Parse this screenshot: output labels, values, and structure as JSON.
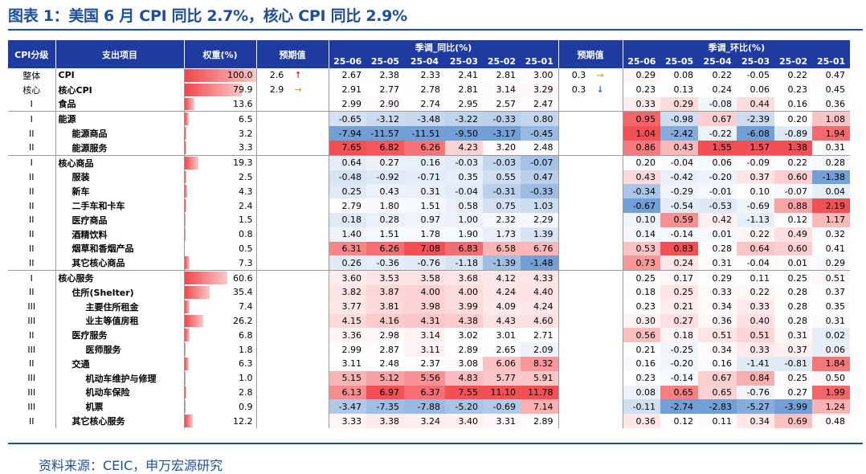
{
  "title": "图表 1：美国 6 月 CPI 同比 2.7%，核心 CPI 同比 2.9%",
  "source": "资料来源：CEIC，申万宏源研究",
  "header": {
    "cpi_level": "CPI分级",
    "item": "支出项目",
    "weight": "权重(%)",
    "forecast": "预期值",
    "yoy_group": "季调_同比(%)",
    "mom_group": "季调_环比(%)",
    "months": [
      "25-06",
      "25-05",
      "25-04",
      "25-03",
      "25-02",
      "25-01"
    ]
  },
  "colors": {
    "header_bg": "#1f3aa0",
    "title": "#1f4e9b",
    "positive_max": "#f0474b",
    "negative_max": "#5a8ed0",
    "arrow_up": "#e53935",
    "arrow_right": "#f0a020",
    "arrow_down": "#2e6fd6"
  },
  "rows": [
    {
      "level": "整体",
      "item": "CPI",
      "indent": 0,
      "weight": "100.0",
      "w": 100.0,
      "fc1": "2.6",
      "arr1": "↑",
      "fc2": "0.3",
      "arr2": "→",
      "yoy": [
        "2.67",
        "2.38",
        "2.33",
        "2.41",
        "2.81",
        "3.00"
      ],
      "mom": [
        "0.29",
        "0.08",
        "0.22",
        "-0.05",
        "0.22",
        "0.47"
      ]
    },
    {
      "level": "核心",
      "item": "核心CPI",
      "indent": 0,
      "weight": "79.9",
      "w": 79.9,
      "fc1": "2.9",
      "arr1": "→",
      "fc2": "0.3",
      "arr2": "↓",
      "yoy": [
        "2.91",
        "2.77",
        "2.78",
        "2.81",
        "3.14",
        "3.29"
      ],
      "mom": [
        "0.23",
        "0.13",
        "0.24",
        "0.06",
        "0.23",
        "0.45"
      ]
    },
    {
      "level": "I",
      "item": "食品",
      "indent": 0,
      "weight": "13.6",
      "w": 13.6,
      "yoy": [
        "2.99",
        "2.90",
        "2.74",
        "2.95",
        "2.57",
        "2.47"
      ],
      "mom": [
        "0.33",
        "0.29",
        "-0.08",
        "0.44",
        "0.16",
        "0.36"
      ]
    },
    {
      "level": "I",
      "item": "能源",
      "indent": 0,
      "weight": "6.5",
      "w": 6.5,
      "sep": true,
      "yoy": [
        "-0.65",
        "-3.12",
        "-3.48",
        "-3.22",
        "-0.33",
        "0.80"
      ],
      "mom": [
        "0.95",
        "-0.98",
        "0.67",
        "-2.39",
        "0.20",
        "1.08"
      ]
    },
    {
      "level": "II",
      "item": "能源商品",
      "indent": 1,
      "weight": "3.2",
      "w": 3.2,
      "yoy": [
        "-7.94",
        "-11.57",
        "-11.51",
        "-9.50",
        "-3.17",
        "-0.45"
      ],
      "mom": [
        "1.04",
        "-2.42",
        "-0.22",
        "-6.08",
        "-0.89",
        "1.94"
      ]
    },
    {
      "level": "II",
      "item": "能源服务",
      "indent": 1,
      "weight": "3.3",
      "w": 3.3,
      "yoy": [
        "7.65",
        "6.82",
        "6.26",
        "4.23",
        "3.20",
        "2.48"
      ],
      "mom": [
        "0.86",
        "0.43",
        "1.55",
        "1.57",
        "1.38",
        "0.31"
      ]
    },
    {
      "level": "I",
      "item": "核心商品",
      "indent": 0,
      "weight": "19.3",
      "w": 19.3,
      "sep": true,
      "yoy": [
        "0.64",
        "0.27",
        "0.16",
        "-0.03",
        "-0.03",
        "-0.07"
      ],
      "mom": [
        "0.20",
        "-0.04",
        "0.06",
        "-0.09",
        "0.22",
        "0.28"
      ]
    },
    {
      "level": "II",
      "item": "服装",
      "indent": 1,
      "weight": "2.5",
      "w": 2.5,
      "yoy": [
        "-0.48",
        "-0.92",
        "-0.71",
        "0.35",
        "0.55",
        "0.47"
      ],
      "mom": [
        "0.43",
        "-0.42",
        "-0.20",
        "0.37",
        "0.60",
        "-1.38"
      ]
    },
    {
      "level": "II",
      "item": "新车",
      "indent": 1,
      "weight": "4.3",
      "w": 4.3,
      "yoy": [
        "0.25",
        "0.43",
        "0.31",
        "-0.04",
        "-0.31",
        "-0.33"
      ],
      "mom": [
        "-0.34",
        "-0.29",
        "-0.01",
        "0.10",
        "-0.07",
        "0.04"
      ]
    },
    {
      "level": "II",
      "item": "二手车和卡车",
      "indent": 1,
      "weight": "2.4",
      "w": 2.4,
      "yoy": [
        "2.79",
        "1.80",
        "1.51",
        "0.58",
        "0.75",
        "1.03"
      ],
      "mom": [
        "-0.67",
        "-0.54",
        "-0.53",
        "-0.69",
        "0.88",
        "2.19"
      ]
    },
    {
      "level": "II",
      "item": "医疗商品",
      "indent": 1,
      "weight": "1.5",
      "w": 1.5,
      "yoy": [
        "0.18",
        "0.28",
        "0.97",
        "1.00",
        "2.32",
        "2.29"
      ],
      "mom": [
        "0.10",
        "0.59",
        "0.42",
        "-1.13",
        "0.12",
        "1.17"
      ]
    },
    {
      "level": "II",
      "item": "酒精饮料",
      "indent": 1,
      "weight": "0.8",
      "w": 0.8,
      "yoy": [
        "1.40",
        "1.51",
        "1.78",
        "1.90",
        "1.73",
        "1.39"
      ],
      "mom": [
        "0.14",
        "-0.14",
        "0.01",
        "0.22",
        "0.49",
        "0.32"
      ]
    },
    {
      "level": "II",
      "item": "烟草和香烟产品",
      "indent": 1,
      "weight": "0.5",
      "w": 0.5,
      "yoy": [
        "6.31",
        "6.26",
        "7.08",
        "6.83",
        "6.58",
        "6.76"
      ],
      "mom": [
        "0.53",
        "0.83",
        "0.28",
        "0.64",
        "0.60",
        "0.41"
      ]
    },
    {
      "level": "II",
      "item": "其它核心商品",
      "indent": 1,
      "weight": "7.3",
      "w": 7.3,
      "yoy": [
        "0.26",
        "-0.36",
        "-0.76",
        "-1.18",
        "-1.39",
        "-1.48"
      ],
      "mom": [
        "0.73",
        "0.24",
        "0.31",
        "-0.04",
        "0.01",
        "0.29"
      ]
    },
    {
      "level": "I",
      "item": "核心服务",
      "indent": 0,
      "weight": "60.6",
      "w": 60.6,
      "sep": true,
      "yoy": [
        "3.60",
        "3.53",
        "3.58",
        "3.68",
        "4.12",
        "4.33"
      ],
      "mom": [
        "0.25",
        "0.17",
        "0.29",
        "0.11",
        "0.25",
        "0.51"
      ]
    },
    {
      "level": "II",
      "item": "住所(Shelter)",
      "indent": 1,
      "weight": "35.4",
      "w": 35.4,
      "yoy": [
        "3.82",
        "3.87",
        "4.00",
        "4.00",
        "4.24",
        "4.40"
      ],
      "mom": [
        "0.18",
        "0.25",
        "0.33",
        "0.22",
        "0.28",
        "0.37"
      ]
    },
    {
      "level": "III",
      "item": "主要住所租金",
      "indent": 2,
      "weight": "7.4",
      "w": 7.4,
      "yoy": [
        "3.77",
        "3.81",
        "3.98",
        "3.99",
        "4.09",
        "4.24"
      ],
      "mom": [
        "0.23",
        "0.21",
        "0.34",
        "0.33",
        "0.28",
        "0.35"
      ]
    },
    {
      "level": "III",
      "item": "业主等值房租",
      "indent": 2,
      "weight": "26.2",
      "w": 26.2,
      "yoy": [
        "4.15",
        "4.16",
        "4.31",
        "4.38",
        "4.43",
        "4.60"
      ],
      "mom": [
        "0.30",
        "0.27",
        "0.36",
        "0.40",
        "0.28",
        "0.31"
      ]
    },
    {
      "level": "II",
      "item": "医疗服务",
      "indent": 1,
      "weight": "6.8",
      "w": 6.8,
      "yoy": [
        "3.36",
        "2.98",
        "3.14",
        "3.02",
        "3.01",
        "2.71"
      ],
      "mom": [
        "0.56",
        "0.18",
        "0.51",
        "0.51",
        "0.31",
        "0.02"
      ]
    },
    {
      "level": "III",
      "item": "医师服务",
      "indent": 2,
      "weight": "1.8",
      "w": 1.8,
      "yoy": [
        "2.99",
        "2.87",
        "3.11",
        "2.89",
        "2.65",
        "2.09"
      ],
      "mom": [
        "0.21",
        "-0.25",
        "0.34",
        "0.33",
        "0.37",
        "0.06"
      ]
    },
    {
      "level": "II",
      "item": "交通",
      "indent": 1,
      "weight": "6.3",
      "w": 6.3,
      "yoy": [
        "3.11",
        "2.48",
        "2.37",
        "3.08",
        "6.06",
        "8.32"
      ],
      "mom": [
        "0.16",
        "-0.20",
        "0.16",
        "-1.41",
        "-0.81",
        "1.84"
      ]
    },
    {
      "level": "III",
      "item": "机动车维护与修理",
      "indent": 2,
      "weight": "1.0",
      "w": 1.0,
      "yoy": [
        "5.15",
        "5.12",
        "5.56",
        "4.83",
        "5.77",
        "5.91"
      ],
      "mom": [
        "0.23",
        "-0.14",
        "0.67",
        "0.84",
        "0.25",
        "0.50"
      ]
    },
    {
      "level": "III",
      "item": "机动车保险",
      "indent": 2,
      "weight": "2.8",
      "w": 2.8,
      "yoy": [
        "6.13",
        "6.97",
        "6.37",
        "7.55",
        "11.10",
        "11.78"
      ],
      "mom": [
        "0.08",
        "0.65",
        "0.65",
        "-0.76",
        "0.27",
        "1.99"
      ]
    },
    {
      "level": "III",
      "item": "机票",
      "indent": 2,
      "weight": "0.9",
      "w": 0.9,
      "yoy": [
        "-3.47",
        "-7.35",
        "-7.88",
        "-5.20",
        "-0.69",
        "7.14"
      ],
      "mom": [
        "-0.11",
        "-2.74",
        "-2.83",
        "-5.27",
        "-3.99",
        "1.24"
      ]
    },
    {
      "level": "II",
      "item": "其它核心服务",
      "indent": 1,
      "weight": "12.2",
      "w": 12.2,
      "yoy": [
        "3.33",
        "3.38",
        "3.24",
        "3.40",
        "3.31",
        "2.89"
      ],
      "mom": [
        "0.36",
        "0.12",
        "0.11",
        "0.34",
        "0.69",
        "0.48"
      ]
    }
  ]
}
